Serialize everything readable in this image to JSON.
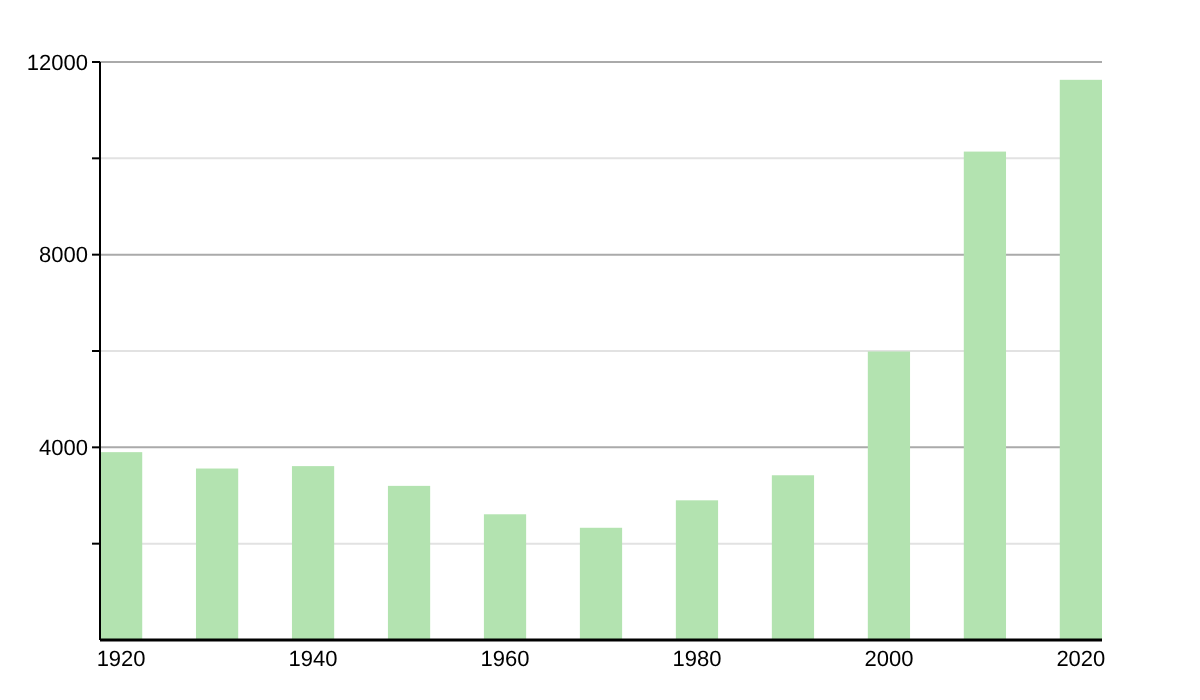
{
  "chart_data": {
    "type": "bar",
    "categories": [
      "1920",
      null,
      "1940",
      null,
      "1960",
      null,
      "1980",
      null,
      "2000",
      null,
      "2020"
    ],
    "values": [
      3900,
      3560,
      3610,
      3200,
      2610,
      2330,
      2900,
      3420,
      5990,
      10140,
      11630
    ],
    "color": "#b3e3b0",
    "ylim": [
      0,
      12000
    ],
    "yticks": [
      {
        "value": 2000,
        "label": null
      },
      4000,
      {
        "value": 6000,
        "label": null
      },
      8000,
      {
        "value": 10000,
        "label": null
      },
      12000
    ],
    "grid": true
  }
}
